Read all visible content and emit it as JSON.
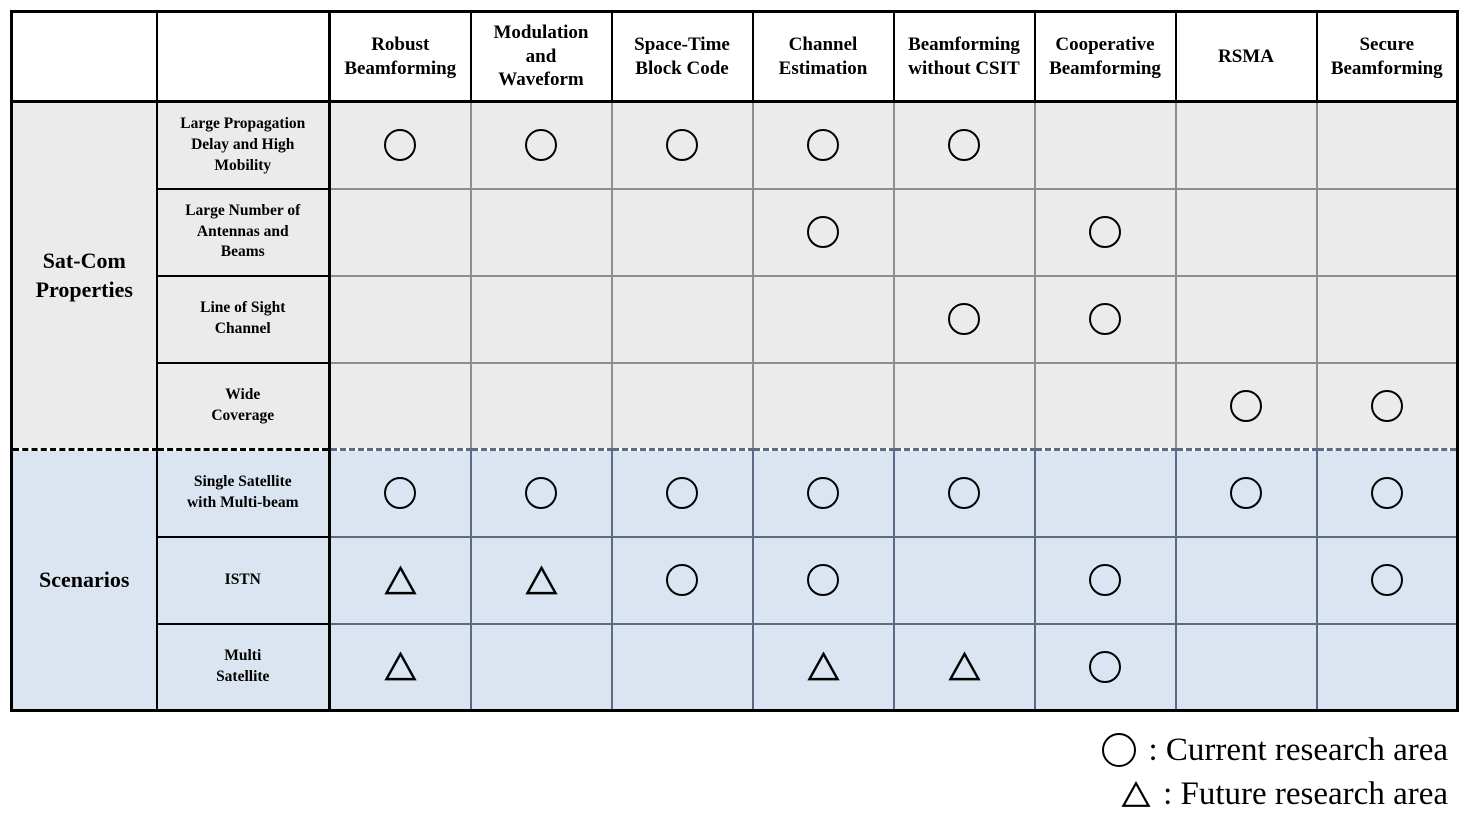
{
  "table": {
    "corner": [
      "",
      ""
    ],
    "columns": [
      "Robust\nBeamforming",
      "Modulation\nand\nWaveform",
      "Space-Time\nBlock Code",
      "Channel\nEstimation",
      "Beamforming\nwithout CSIT",
      "Cooperative\nBeamforming",
      "RSMA",
      "Secure\nBeamforming"
    ],
    "groups": [
      {
        "label": "Sat-Com\nProperties",
        "section": "properties",
        "rows": [
          {
            "label": "Large Propagation\nDelay and High\nMobility",
            "cells": [
              "circle",
              "circle",
              "circle",
              "circle",
              "circle",
              "",
              "",
              ""
            ]
          },
          {
            "label": "Large Number of\nAntennas and\nBeams",
            "cells": [
              "",
              "",
              "",
              "circle",
              "",
              "circle",
              "",
              ""
            ]
          },
          {
            "label": "Line of Sight\nChannel",
            "cells": [
              "",
              "",
              "",
              "",
              "circle",
              "circle",
              "",
              ""
            ]
          },
          {
            "label": "Wide\nCoverage",
            "cells": [
              "",
              "",
              "",
              "",
              "",
              "",
              "circle",
              "circle"
            ]
          }
        ]
      },
      {
        "label": "Scenarios",
        "section": "scenarios",
        "rows": [
          {
            "label": "Single Satellite\nwith Multi-beam",
            "cells": [
              "circle",
              "circle",
              "circle",
              "circle",
              "circle",
              "",
              "circle",
              "circle"
            ]
          },
          {
            "label": "ISTN",
            "cells": [
              "triangle",
              "triangle",
              "circle",
              "circle",
              "",
              "circle",
              "",
              "circle"
            ]
          },
          {
            "label": "Multi\nSatellite",
            "cells": [
              "triangle",
              "",
              "",
              "triangle",
              "triangle",
              "circle",
              "",
              ""
            ]
          }
        ]
      }
    ]
  },
  "symbols": {
    "circle": "current research area",
    "triangle": "future research area"
  },
  "legend": [
    {
      "symbol": "circle",
      "text": ": Current research area"
    },
    {
      "symbol": "triangle",
      "text": ": Future research area"
    }
  ],
  "colors": {
    "properties_bg": "#ebebeb",
    "scenarios_bg": "#dbe5f1",
    "properties_grid": "#8e8e8e",
    "scenarios_grid": "#5c6b85",
    "border": "#000000"
  }
}
